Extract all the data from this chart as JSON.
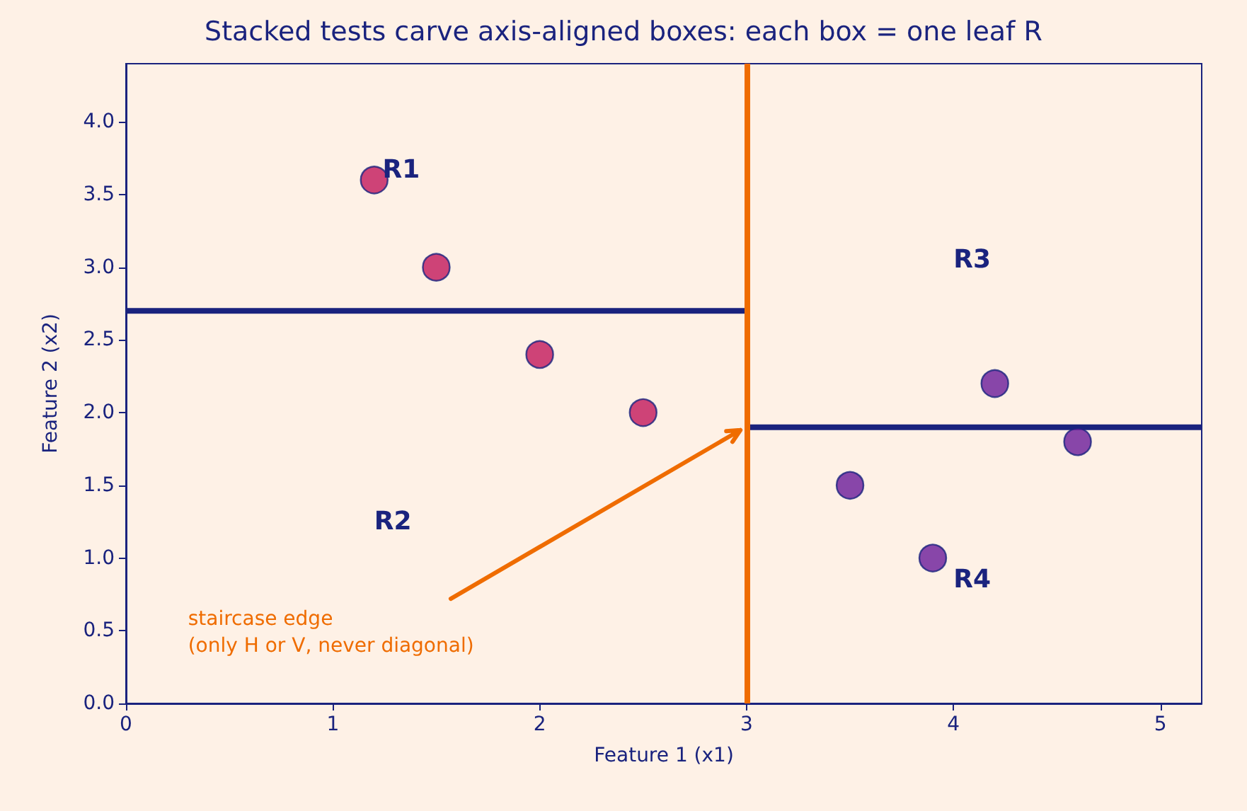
{
  "chart_data": {
    "type": "scatter",
    "title": "Stacked tests carve axis-aligned boxes: each box = one leaf R",
    "xlabel": "Feature 1 (x1)",
    "ylabel": "Feature 2 (x2)",
    "series": [
      {
        "color": "#c2185b",
        "x": [
          1.2,
          1.5,
          2.0,
          2.5
        ],
        "values": [
          3.6,
          3.0,
          2.4,
          2.0
        ]
      },
      {
        "color": "#6a1b9a",
        "x": [
          3.5,
          3.9,
          4.2,
          4.6
        ],
        "values": [
          1.5,
          1.0,
          2.2,
          1.8
        ]
      },
      {
        "type": "line",
        "marker": "none",
        "color": "#1a237e",
        "x": [
          0,
          3
        ],
        "values": [
          2.7,
          2.7
        ]
      },
      {
        "type": "line",
        "marker": "none",
        "color": "#1a237e",
        "x": [
          3,
          5.2
        ],
        "values": [
          1.9,
          1.9
        ]
      }
    ],
    "ref_lines": [
      {
        "axis": "x",
        "value": 3,
        "color": "#ef6c00"
      }
    ],
    "annotations": [
      "R1",
      "R2",
      "R3",
      "R4",
      "staircase edge\n(only H or V, never diagonal)"
    ],
    "xlim": [
      0,
      5.2
    ],
    "xticks": [
      0,
      1,
      2,
      3,
      4,
      5
    ],
    "ylim": [
      0,
      4.4
    ],
    "yticks": [
      {
        "value": 0,
        "label": "0.0"
      },
      0.5,
      {
        "value": 1,
        "label": "1.0"
      },
      1.5,
      {
        "value": 2,
        "label": "2.0"
      },
      2.5,
      {
        "value": 3,
        "label": "3.0"
      },
      3.5,
      {
        "value": 4,
        "label": "4.0"
      }
    ],
    "grid": false
  }
}
